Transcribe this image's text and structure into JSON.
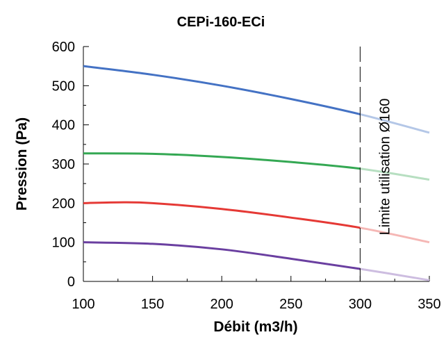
{
  "chart_data": {
    "type": "line",
    "title": "CEPi-160-ECi",
    "xlabel": "Débit (m3/h)",
    "ylabel": "Pression (Pa)",
    "xlim": [
      100,
      350
    ],
    "ylim": [
      0,
      600
    ],
    "x_ticks": [
      100,
      150,
      200,
      250,
      300,
      350
    ],
    "y_ticks": [
      0,
      100,
      200,
      300,
      400,
      500,
      600
    ],
    "x_tick_labels": [
      "100",
      "150",
      "200",
      "250",
      "300",
      "350"
    ],
    "y_tick_labels": [
      "0",
      "100",
      "200",
      "300",
      "400",
      "500",
      "600"
    ],
    "grid": false,
    "limit": {
      "x": 300,
      "label": "Limite utilisation Ø160",
      "style": "dashed"
    },
    "series": [
      {
        "color": "#4472c4",
        "faded_color": "#b4c7e7",
        "x": [
          100,
          150,
          200,
          250,
          300,
          350
        ],
        "y": [
          550,
          528,
          500,
          466,
          427,
          380
        ]
      },
      {
        "color": "#34a853",
        "faded_color": "#b7dfc1",
        "x": [
          100,
          150,
          200,
          250,
          300,
          350
        ],
        "y": [
          327,
          326,
          318,
          305,
          288,
          260
        ]
      },
      {
        "color": "#e53935",
        "faded_color": "#f5b7b5",
        "x": [
          100,
          125,
          150,
          200,
          250,
          300,
          350
        ],
        "y": [
          200,
          202,
          200,
          185,
          163,
          137,
          100
        ]
      },
      {
        "color": "#6a3fa0",
        "faded_color": "#cdbde0",
        "x": [
          100,
          150,
          200,
          250,
          300,
          350
        ],
        "y": [
          100,
          96,
          82,
          58,
          32,
          3
        ]
      }
    ]
  }
}
